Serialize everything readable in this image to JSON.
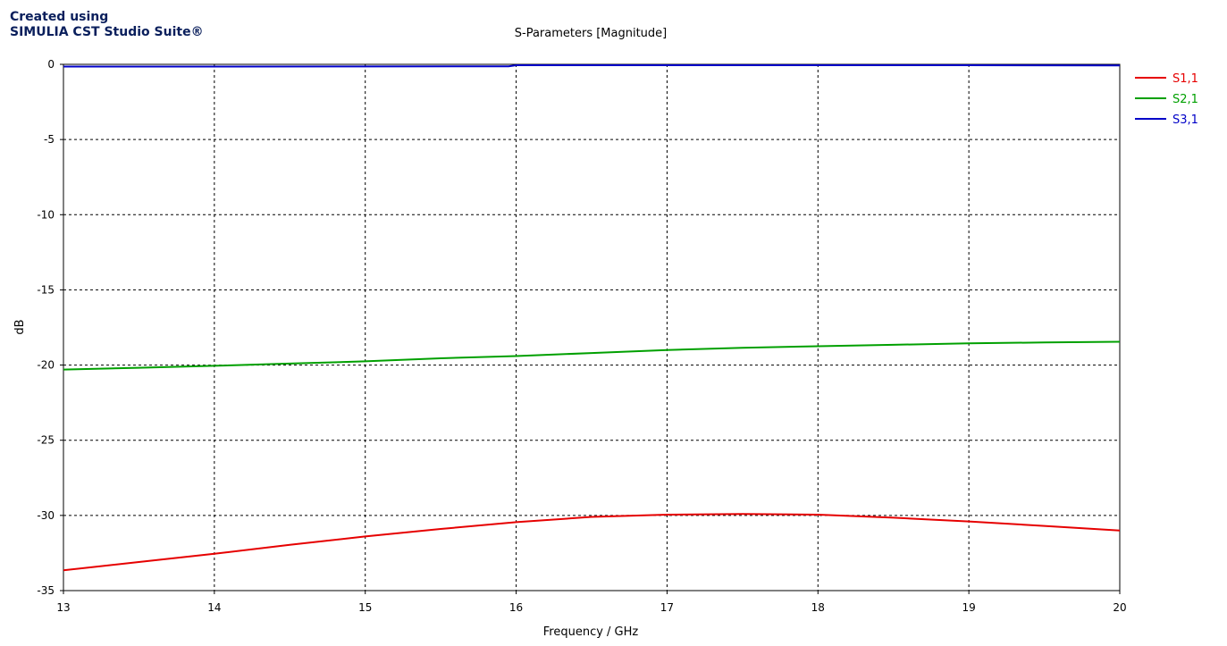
{
  "watermark": {
    "line1": "Created using",
    "line2": "SIMULIA CST Studio Suite®"
  },
  "chart_data": {
    "type": "line",
    "title": "S-Parameters [Magnitude]",
    "xlabel": "Frequency / GHz",
    "ylabel": "dB",
    "xlim": [
      13,
      20
    ],
    "ylim": [
      -35,
      0
    ],
    "xticks": [
      "13",
      "14",
      "15",
      "16",
      "17",
      "18",
      "19",
      "20"
    ],
    "yticks": [
      "0",
      "-5",
      "-10",
      "-15",
      "-20",
      "-25",
      "-30",
      "-35"
    ],
    "grid": true,
    "legend_position": "top-right",
    "series": [
      {
        "name": "S1,1",
        "color": "#e60000",
        "x": [
          13,
          13.5,
          14,
          14.5,
          15,
          15.5,
          16,
          16.5,
          17,
          17.5,
          18,
          18.5,
          19,
          19.5,
          20
        ],
        "y": [
          -33.65,
          -33.1,
          -32.55,
          -31.95,
          -31.4,
          -30.9,
          -30.45,
          -30.1,
          -29.95,
          -29.9,
          -29.95,
          -30.15,
          -30.4,
          -30.7,
          -31.0
        ]
      },
      {
        "name": "S2,1",
        "color": "#00a000",
        "x": [
          13,
          13.5,
          14,
          14.5,
          15,
          15.5,
          16,
          16.5,
          17,
          17.5,
          18,
          18.5,
          19,
          19.5,
          20
        ],
        "y": [
          -20.3,
          -20.18,
          -20.05,
          -19.9,
          -19.75,
          -19.55,
          -19.4,
          -19.2,
          -19.0,
          -18.85,
          -18.75,
          -18.65,
          -18.55,
          -18.5,
          -18.45
        ]
      },
      {
        "name": "S3,1",
        "color": "#0000c8",
        "x": [
          13,
          14,
          15,
          15.95,
          16,
          17,
          18,
          19,
          20
        ],
        "y": [
          -0.15,
          -0.15,
          -0.14,
          -0.13,
          -0.06,
          -0.06,
          -0.06,
          -0.06,
          -0.07
        ]
      }
    ]
  }
}
